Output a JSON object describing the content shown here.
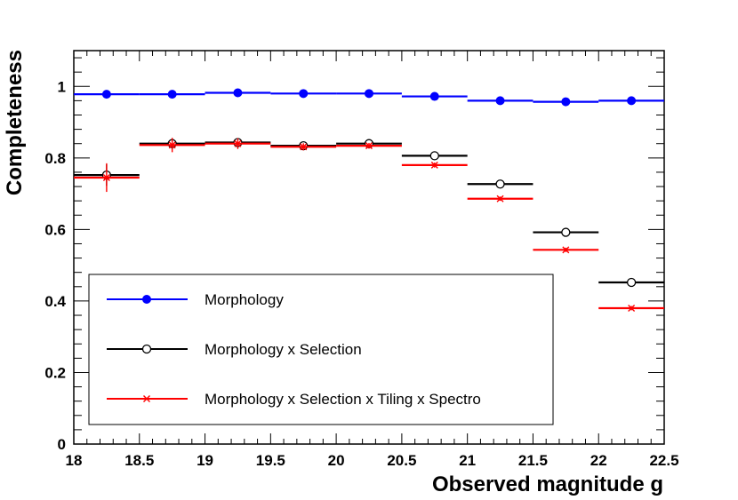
{
  "chart_data": {
    "type": "scatter",
    "xlabel": "Observed magnitude g",
    "ylabel": "Completeness",
    "xlim": [
      18,
      22.5
    ],
    "ylim": [
      0,
      1.1
    ],
    "x_ticks": [
      "18",
      "18.5",
      "19",
      "19.5",
      "20",
      "20.5",
      "21",
      "21.5",
      "22",
      "22.5"
    ],
    "y_ticks": [
      "0",
      "0.2",
      "0.4",
      "0.6",
      "0.8",
      "1"
    ],
    "bin_halfwidth": 0.25,
    "series": [
      {
        "name": "Morphology",
        "color": "#0000ff",
        "marker": "filled-circle",
        "x": [
          18.25,
          18.75,
          19.25,
          19.75,
          20.25,
          20.75,
          21.25,
          21.75,
          22.25
        ],
        "values": [
          0.978,
          0.978,
          0.982,
          0.98,
          0.98,
          0.972,
          0.96,
          0.957,
          0.96
        ],
        "errors": [
          0.006,
          0.005,
          0.005,
          0.005,
          0.005,
          0.005,
          0.005,
          0.005,
          0.005
        ]
      },
      {
        "name": "Morphology x Selection",
        "color": "#000000",
        "marker": "open-circle",
        "x": [
          18.25,
          18.75,
          19.25,
          19.75,
          20.25,
          20.75,
          21.25,
          21.75,
          22.25
        ],
        "values": [
          0.752,
          0.84,
          0.843,
          0.834,
          0.84,
          0.806,
          0.727,
          0.592,
          0.452
        ],
        "errors": [
          0.03,
          0.015,
          0.012,
          0.01,
          0.008,
          0.007,
          0.006,
          0.006,
          0.006
        ]
      },
      {
        "name": "Morphology x Selection x Tiling x Spectro",
        "color": "#ff0000",
        "marker": "asterisk",
        "x": [
          18.25,
          18.75,
          19.25,
          19.75,
          20.25,
          20.75,
          21.25,
          21.75,
          22.25
        ],
        "values": [
          0.745,
          0.836,
          0.84,
          0.831,
          0.834,
          0.78,
          0.686,
          0.543,
          0.38
        ],
        "errors": [
          0.04,
          0.02,
          0.015,
          0.01,
          0.008,
          0.007,
          0.006,
          0.006,
          0.006
        ]
      }
    ]
  }
}
